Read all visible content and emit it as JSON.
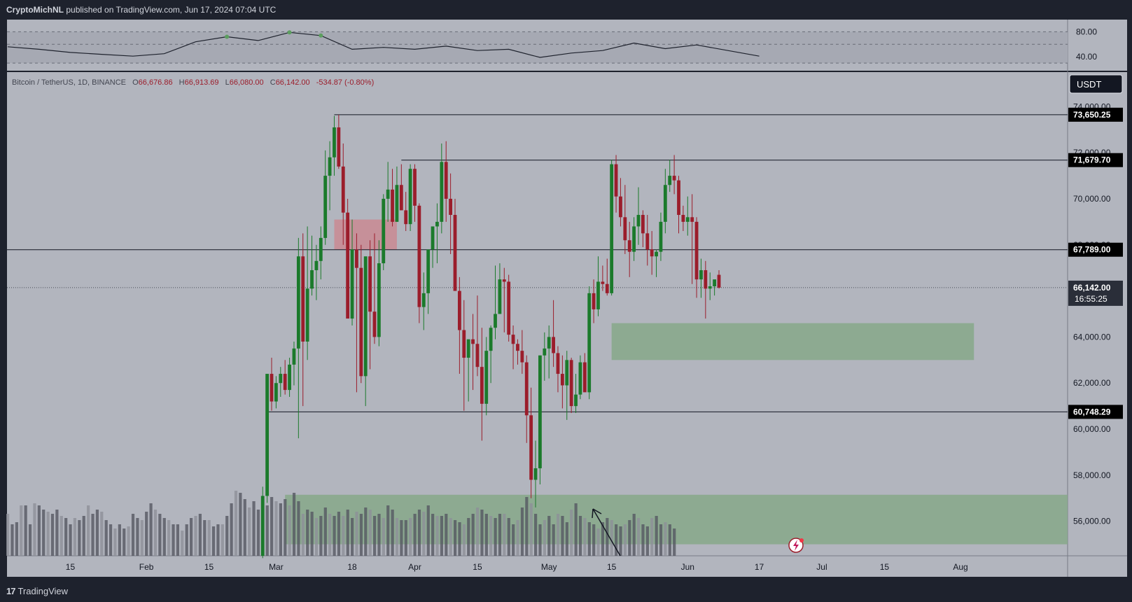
{
  "header": {
    "author": "CryptoMichNL",
    "published_text": "published on TradingView.com, Jun 17, 2024 07:04 UTC"
  },
  "footer": {
    "brand": "TradingView",
    "logo_mark": "17"
  },
  "legend": {
    "symbol": "Bitcoin / TetherUS, 1D, BINANCE",
    "open_prefix": "O",
    "open": "66,676.86",
    "high_prefix": "H",
    "high": "66,913.69",
    "low_prefix": "L",
    "low": "66,080.00",
    "close_prefix": "C",
    "close": "66,142.00",
    "change": "-534.87 (-0.80%)"
  },
  "currency_button": "USDT",
  "colors": {
    "background": "#b2b5be",
    "up": "#1b7a2b",
    "down": "#9b1d2b",
    "supply_zone": "#c98a93",
    "demand_zone": "#86a88a",
    "frame": "#1e222d"
  },
  "chart_data": [
    {
      "type": "line",
      "indicator": "oscillator",
      "y_ticks": [
        "80.00",
        "40.00"
      ],
      "ylim": [
        20,
        95
      ],
      "band": [
        30,
        80
      ],
      "x": [
        "2024-01-01",
        "2024-01-08",
        "2024-01-15",
        "2024-01-22",
        "2024-01-29",
        "2024-02-05",
        "2024-02-12",
        "2024-02-19",
        "2024-02-26",
        "2024-03-04",
        "2024-03-11",
        "2024-03-18",
        "2024-03-25",
        "2024-04-01",
        "2024-04-08",
        "2024-04-15",
        "2024-04-22",
        "2024-04-29",
        "2024-05-06",
        "2024-05-13",
        "2024-05-20",
        "2024-05-27",
        "2024-06-03",
        "2024-06-10",
        "2024-06-17"
      ],
      "values": [
        56,
        52,
        47,
        44,
        41,
        45,
        64,
        72,
        66,
        79,
        74,
        52,
        55,
        52,
        57,
        50,
        52,
        39,
        46,
        50,
        62,
        53,
        59,
        50,
        41
      ]
    },
    {
      "type": "candlestick",
      "symbol": "Bitcoin / TetherUS",
      "interval": "1D",
      "exchange": "BINANCE",
      "y_ticks": [
        "74,000.00",
        "72,000.00",
        "70,000.00",
        "68,000.00",
        "64,000.00",
        "62,000.00",
        "60,000.00",
        "58,000.00",
        "56,000.00"
      ],
      "x_ticks": [
        "15",
        "Feb",
        "15",
        "Mar",
        "18",
        "Apr",
        "15",
        "May",
        "15",
        "Jun",
        "17",
        "Jul",
        "15",
        "Aug"
      ],
      "ylim": [
        54500,
        75500
      ],
      "horizontal_levels": [
        {
          "price": 73650.25,
          "label": "73,650.25"
        },
        {
          "price": 71679.7,
          "label": "71,679.70"
        },
        {
          "price": 67789.0,
          "label": "67,789.00"
        },
        {
          "price": 60748.29,
          "label": "60,748.29"
        }
      ],
      "last_price": {
        "price": 66142.0,
        "label": "66,142.00",
        "countdown": "16:55:25"
      },
      "zones": [
        {
          "kind": "supply",
          "from": "2024-03-14",
          "to": "2024-03-28",
          "low": 67800,
          "high": 69100
        },
        {
          "kind": "demand",
          "from": "2024-05-15",
          "to": "2024-08-04",
          "low": 63000,
          "high": 64600
        },
        {
          "kind": "demand",
          "from": "2024-03-03",
          "to": "2024-08-31",
          "low": 55000,
          "high": 57150
        }
      ],
      "candles_ohlc_from_2024-02-27": [
        [
          54500,
          57500,
          54400,
          57100
        ],
        [
          57100,
          62300,
          56800,
          62400
        ],
        [
          62400,
          63100,
          60800,
          61200
        ],
        [
          61200,
          62300,
          60900,
          62000
        ],
        [
          62000,
          62700,
          61400,
          62400
        ],
        [
          62400,
          63000,
          61500,
          61700
        ],
        [
          61700,
          63100,
          61400,
          62800
        ],
        [
          62800,
          63800,
          61900,
          63500
        ],
        [
          63500,
          68300,
          59600,
          67500
        ],
        [
          67500,
          68500,
          61000,
          63800
        ],
        [
          63800,
          68800,
          63000,
          66100
        ],
        [
          66100,
          68400,
          65800,
          66900
        ],
        [
          66900,
          68000,
          65600,
          67300
        ],
        [
          67300,
          68800,
          66500,
          68300
        ],
        [
          68300,
          72100,
          68000,
          71000
        ],
        [
          71000,
          72500,
          69500,
          71800
        ],
        [
          71800,
          73600,
          71000,
          73100
        ],
        [
          73100,
          73650,
          71300,
          71400
        ],
        [
          71400,
          72400,
          68000,
          69400
        ],
        [
          69400,
          70000,
          65000,
          64800
        ],
        [
          64800,
          69100,
          64500,
          67800
        ],
        [
          67800,
          68500,
          61600,
          67000
        ],
        [
          67000,
          68000,
          62000,
          62300
        ],
        [
          62300,
          67000,
          61000,
          67500
        ],
        [
          67500,
          68200,
          62600,
          65100
        ],
        [
          65100,
          68500,
          63700,
          64000
        ],
        [
          64000,
          68200,
          63600,
          67200
        ],
        [
          67200,
          70200,
          66900,
          70000
        ],
        [
          70000,
          71600,
          69000,
          70400
        ],
        [
          70400,
          71300,
          68800,
          69000
        ],
        [
          69000,
          71400,
          69000,
          70600
        ],
        [
          70600,
          71500,
          70000,
          69500
        ],
        [
          69500,
          70300,
          68600,
          68900
        ],
        [
          68900,
          71500,
          68600,
          71300
        ],
        [
          71300,
          71500,
          69000,
          69700
        ],
        [
          69700,
          69800,
          64600,
          65300
        ],
        [
          65300,
          66800,
          64300,
          65900
        ],
        [
          65900,
          67100,
          65000,
          67800
        ],
        [
          67800,
          68700,
          67000,
          68800
        ],
        [
          68800,
          69800,
          67200,
          69000
        ],
        [
          69000,
          72400,
          68500,
          71600
        ],
        [
          71600,
          72500,
          69000,
          70000
        ],
        [
          70000,
          71100,
          67600,
          69300
        ],
        [
          69300,
          70000,
          67000,
          66000
        ],
        [
          66000,
          66600,
          62400,
          64300
        ],
        [
          64300,
          65600,
          60800,
          63100
        ],
        [
          63100,
          63800,
          61200,
          63900
        ],
        [
          63900,
          65000,
          61700,
          63700
        ],
        [
          63700,
          65800,
          62300,
          62700
        ],
        [
          62700,
          64400,
          59500,
          61100
        ],
        [
          61100,
          64000,
          60600,
          63400
        ],
        [
          63400,
          64500,
          62000,
          64400
        ],
        [
          64400,
          67100,
          63900,
          65000
        ],
        [
          65000,
          67200,
          65600,
          66500
        ],
        [
          66500,
          67000,
          64200,
          66400
        ],
        [
          66400,
          66700,
          63800,
          64100
        ],
        [
          64100,
          64500,
          62600,
          63700
        ],
        [
          63700,
          63900,
          62800,
          63400
        ],
        [
          63400,
          64300,
          62400,
          62900
        ],
        [
          62900,
          63200,
          59400,
          60600
        ],
        [
          60600,
          61800,
          57000,
          57800
        ],
        [
          57800,
          59500,
          56600,
          58300
        ],
        [
          58300,
          63200,
          57600,
          63200
        ],
        [
          63200,
          64200,
          62100,
          63500
        ],
        [
          63500,
          64500,
          62200,
          64000
        ],
        [
          64000,
          65600,
          62700,
          63300
        ],
        [
          63300,
          63600,
          61600,
          62400
        ],
        [
          62400,
          63200,
          60900,
          61900
        ],
        [
          61900,
          63400,
          60400,
          63000
        ],
        [
          63000,
          63100,
          60700,
          61000
        ],
        [
          61000,
          62400,
          60700,
          61500
        ],
        [
          61500,
          63200,
          61300,
          62900
        ],
        [
          62900,
          63300,
          61800,
          61600
        ],
        [
          61600,
          66200,
          61300,
          65900
        ],
        [
          65900,
          66500,
          64600,
          65200
        ],
        [
          65200,
          67500,
          64900,
          66400
        ],
        [
          66400,
          67100,
          66000,
          66300
        ],
        [
          66300,
          67400,
          65800,
          65900
        ],
        [
          65900,
          71700,
          65800,
          71500
        ],
        [
          71500,
          71900,
          69400,
          70100
        ],
        [
          70100,
          70900,
          68800,
          69200
        ],
        [
          69200,
          70600,
          67600,
          68200
        ],
        [
          68200,
          69000,
          66600,
          67700
        ],
        [
          67700,
          69200,
          67300,
          68800
        ],
        [
          68800,
          70500,
          68000,
          69300
        ],
        [
          69300,
          69500,
          67900,
          68500
        ],
        [
          68500,
          69300,
          67100,
          67800
        ],
        [
          67800,
          68600,
          66700,
          67500
        ],
        [
          67500,
          67800,
          66600,
          67700
        ],
        [
          67700,
          69400,
          67300,
          69000
        ],
        [
          69000,
          71300,
          68500,
          70600
        ],
        [
          70600,
          71700,
          70300,
          71000
        ],
        [
          71000,
          71900,
          70200,
          70800
        ],
        [
          70800,
          71000,
          68500,
          69300
        ],
        [
          69300,
          69700,
          68600,
          69000
        ],
        [
          69000,
          70100,
          68400,
          69200
        ],
        [
          69200,
          70200,
          66300,
          69000
        ],
        [
          69000,
          69200,
          65700,
          66500
        ],
        [
          66500,
          67400,
          65700,
          66900
        ],
        [
          66900,
          67300,
          64800,
          66100
        ],
        [
          66100,
          66800,
          65600,
          66200
        ],
        [
          66200,
          66400,
          65800,
          66500
        ],
        [
          66700,
          66900,
          66100,
          66142
        ]
      ],
      "volume_scale_max": 100,
      "volume": [
        40,
        30,
        32,
        48,
        48,
        30,
        50,
        48,
        44,
        42,
        40,
        44,
        38,
        36,
        30,
        36,
        34,
        38,
        48,
        40,
        44,
        42,
        34,
        30,
        26,
        30,
        26,
        28,
        40,
        36,
        34,
        42,
        50,
        44,
        40,
        36,
        34,
        30,
        30,
        24,
        30,
        36,
        38,
        40,
        34,
        34,
        28,
        30,
        30,
        38,
        50,
        62,
        60,
        54,
        46,
        52,
        44,
        40,
        48,
        56,
        52,
        50,
        54,
        48,
        60,
        52,
        40,
        44,
        42,
        36,
        38,
        46,
        40,
        38,
        42,
        38,
        44,
        36,
        42,
        40,
        46,
        44,
        38,
        40,
        36,
        48,
        44,
        36,
        34,
        34,
        36,
        40,
        44,
        42,
        48,
        40,
        38,
        38,
        40,
        36,
        34,
        32,
        30,
        36,
        40,
        46,
        44,
        40,
        38,
        36,
        40,
        40,
        36,
        30,
        34,
        46,
        56,
        50,
        40,
        30,
        34,
        38,
        30,
        40,
        38,
        32,
        44,
        50,
        38,
        36,
        32,
        30,
        26,
        32,
        36,
        34,
        30,
        28,
        30,
        34,
        40,
        36,
        30,
        28,
        36,
        38,
        30,
        32,
        30,
        26
      ]
    }
  ]
}
